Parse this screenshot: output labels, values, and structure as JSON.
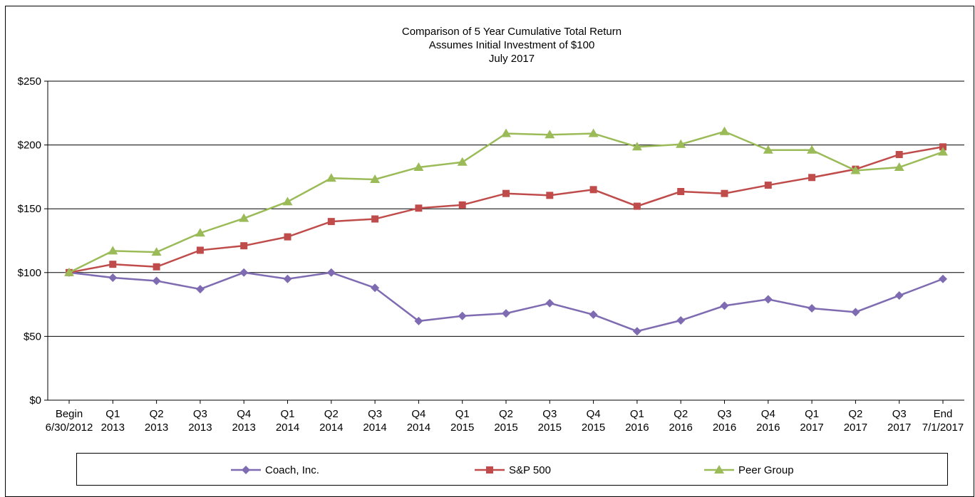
{
  "chart_data": {
    "type": "line",
    "title": [
      "Comparison  of 5 Year Cumulative  Total Return",
      "Assumes Initial Investment  of $100",
      "July 2017"
    ],
    "categories": [
      [
        "Begin",
        "6/30/2012"
      ],
      [
        "Q1",
        "2013"
      ],
      [
        "Q2",
        "2013"
      ],
      [
        "Q3",
        "2013"
      ],
      [
        "Q4",
        "2013"
      ],
      [
        "Q1",
        "2014"
      ],
      [
        "Q2",
        "2014"
      ],
      [
        "Q3",
        "2014"
      ],
      [
        "Q4",
        "2014"
      ],
      [
        "Q1",
        "2015"
      ],
      [
        "Q2",
        "2015"
      ],
      [
        "Q3",
        "2015"
      ],
      [
        "Q4",
        "2015"
      ],
      [
        "Q1",
        "2016"
      ],
      [
        "Q2",
        "2016"
      ],
      [
        "Q3",
        "2016"
      ],
      [
        "Q4",
        "2016"
      ],
      [
        "Q1",
        "2017"
      ],
      [
        "Q2",
        "2017"
      ],
      [
        "Q3",
        "2017"
      ],
      [
        "End",
        "7/1/2017"
      ]
    ],
    "yticks": [
      "$0",
      "$50",
      "$100",
      "$150",
      "$200",
      "$250"
    ],
    "ylim": [
      0,
      250
    ],
    "grid": true,
    "legend_position": "bottom",
    "series": [
      {
        "name": "Coach, Inc.",
        "color": "#7e6bb1",
        "marker": "diamond",
        "values": [
          100,
          96,
          93.5,
          87,
          100,
          95,
          100,
          88,
          62,
          66,
          68,
          76,
          67,
          54,
          62.5,
          74,
          79,
          72,
          69,
          82,
          95
        ]
      },
      {
        "name": "S&P 500",
        "color": "#bf4c4a",
        "marker": "square",
        "values": [
          100,
          106.5,
          104.5,
          117.5,
          121,
          128,
          140,
          142,
          150.5,
          153,
          162,
          160.5,
          165,
          152,
          163.5,
          162,
          168.5,
          174.5,
          181,
          192.5,
          198.5
        ]
      },
      {
        "name": "Peer Group",
        "color": "#9bbb59",
        "marker": "triangle",
        "values": [
          100,
          117,
          116,
          131,
          142.5,
          155.5,
          174,
          173,
          182.5,
          186.5,
          209,
          208,
          209,
          198.5,
          200.5,
          210.5,
          196,
          196,
          180,
          182.5,
          194.5
        ]
      }
    ]
  }
}
